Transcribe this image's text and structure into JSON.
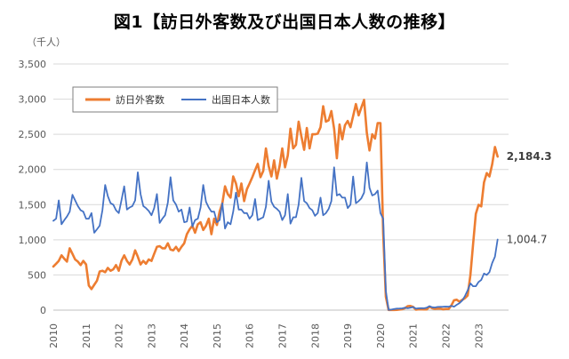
{
  "chart_data": {
    "type": "line",
    "title": "図1【訪日外客数及び出国日本人数の推移】",
    "unit_label": "（千人）",
    "ylim": [
      0,
      3500
    ],
    "yticks": [
      "0",
      "500",
      "1,000",
      "1,500",
      "2,000",
      "2,500",
      "3,000",
      "3,500"
    ],
    "ytick_values": [
      0,
      500,
      1000,
      1500,
      2000,
      2500,
      3000,
      3500
    ],
    "xlim": [
      "2010-01",
      "2023-12"
    ],
    "xticks": [
      "2010",
      "2011",
      "2012",
      "2013",
      "2014",
      "2015",
      "2016",
      "2017",
      "2018",
      "2019",
      "2020",
      "2021",
      "2022",
      "2023"
    ],
    "grid": "horizontal",
    "legend_position": "top-left",
    "series": [
      {
        "name": "訪日外客数",
        "color": "#ED7D31",
        "start": "2010-01",
        "end_label": "2,184.3",
        "values": [
          620,
          660,
          700,
          780,
          730,
          690,
          880,
          800,
          720,
          690,
          640,
          700,
          650,
          350,
          300,
          360,
          420,
          550,
          560,
          540,
          600,
          560,
          580,
          640,
          560,
          700,
          780,
          700,
          650,
          720,
          850,
          760,
          650,
          700,
          660,
          720,
          700,
          800,
          900,
          910,
          880,
          880,
          950,
          860,
          850,
          900,
          840,
          900,
          950,
          1080,
          1150,
          1200,
          1100,
          1220,
          1250,
          1140,
          1200,
          1300,
          1080,
          1300,
          1210,
          1400,
          1520,
          1760,
          1650,
          1600,
          1900,
          1800,
          1620,
          1800,
          1550,
          1720,
          1800,
          1890,
          1990,
          2080,
          1890,
          1980,
          2300,
          2050,
          1900,
          2130,
          1870,
          2050,
          2300,
          2030,
          2200,
          2580,
          2300,
          2350,
          2680,
          2470,
          2280,
          2590,
          2300,
          2500,
          2500,
          2510,
          2600,
          2900,
          2680,
          2700,
          2830,
          2580,
          2160,
          2640,
          2430,
          2630,
          2690,
          2600,
          2760,
          2930,
          2770,
          2880,
          2990,
          2520,
          2270,
          2500,
          2440,
          2660,
          2660,
          1090,
          190,
          3,
          2,
          3,
          4,
          9,
          14,
          28,
          57,
          59,
          46,
          7,
          12,
          11,
          10,
          10,
          51,
          26,
          18,
          22,
          21,
          11,
          17,
          17,
          66,
          140,
          148,
          120,
          145,
          170,
          207,
          499,
          935,
          1370,
          1497,
          1475,
          1817,
          1949,
          1900,
          2073,
          2320,
          2184
        ]
      },
      {
        "name": "出国日本人数",
        "color": "#4472C4",
        "start": "2010-01",
        "end_label": "1,004.7",
        "values": [
          1270,
          1300,
          1560,
          1220,
          1280,
          1330,
          1400,
          1640,
          1560,
          1480,
          1420,
          1400,
          1300,
          1300,
          1380,
          1100,
          1150,
          1200,
          1420,
          1780,
          1620,
          1520,
          1500,
          1420,
          1380,
          1560,
          1760,
          1430,
          1460,
          1480,
          1560,
          1960,
          1650,
          1480,
          1450,
          1410,
          1350,
          1450,
          1650,
          1240,
          1300,
          1350,
          1530,
          1890,
          1560,
          1500,
          1400,
          1430,
          1250,
          1260,
          1460,
          1190,
          1280,
          1300,
          1460,
          1780,
          1540,
          1460,
          1400,
          1400,
          1250,
          1280,
          1520,
          1160,
          1250,
          1220,
          1400,
          1670,
          1430,
          1430,
          1380,
          1380,
          1300,
          1350,
          1580,
          1280,
          1300,
          1320,
          1470,
          1840,
          1540,
          1470,
          1440,
          1400,
          1280,
          1350,
          1650,
          1230,
          1320,
          1320,
          1500,
          1880,
          1550,
          1520,
          1450,
          1420,
          1340,
          1380,
          1600,
          1350,
          1380,
          1440,
          1550,
          2030,
          1630,
          1650,
          1600,
          1600,
          1450,
          1500,
          1900,
          1520,
          1550,
          1590,
          1670,
          2100,
          1740,
          1630,
          1650,
          1700,
          1380,
          1300,
          270,
          4,
          8,
          15,
          21,
          23,
          25,
          36,
          26,
          34,
          44,
          22,
          27,
          28,
          26,
          35,
          56,
          40,
          38,
          45,
          47,
          48,
          50,
          48,
          61,
          49,
          76,
          100,
          137,
          198,
          280,
          380,
          340,
          340,
          400,
          430,
          520,
          500,
          540,
          670,
          760,
          1005
        ]
      }
    ]
  }
}
